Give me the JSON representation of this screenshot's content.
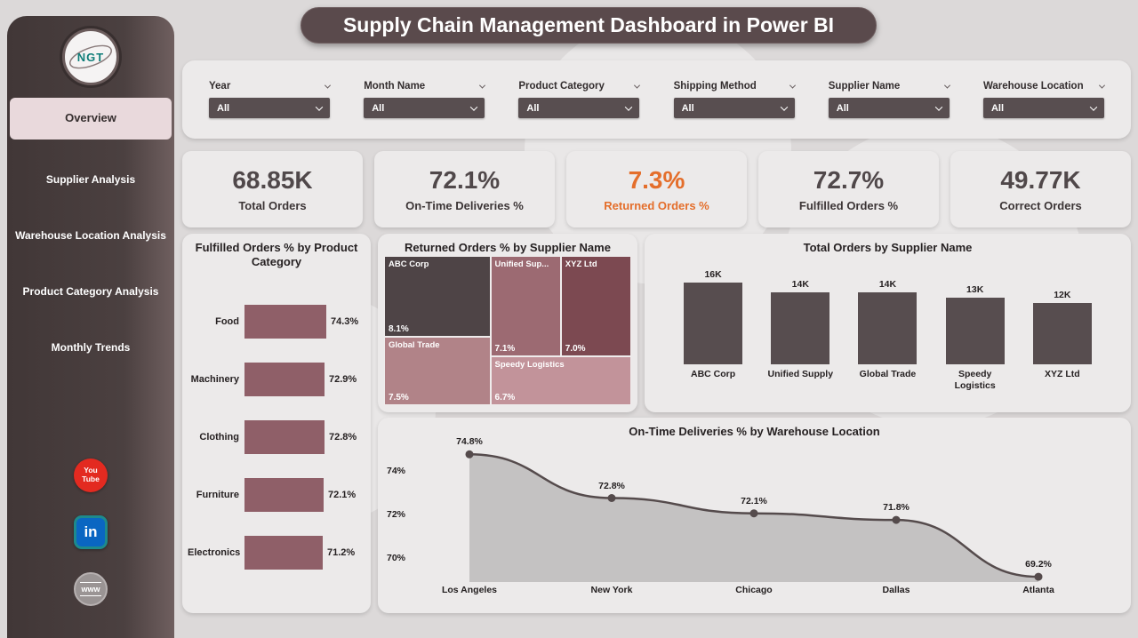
{
  "title": "Supply Chain Management Dashboard in Power BI",
  "colors": {
    "page_bg": "#dcd9d9",
    "card_bg": "#eceaea",
    "sidebar_gradient_start": "#413737",
    "sidebar_gradient_end": "#6f5f5f",
    "active_nav_bg": "#e9d9dc",
    "header_bg": "#5a4a4c",
    "dropdown_bg": "#584e50",
    "kpi_text": "#50484a",
    "kpi_highlight": "#e46e2b",
    "hbar_color": "#8f5f68",
    "column_color": "#574d4f",
    "line_color": "#554b4c",
    "area_fill": "#c4c2c2",
    "logo_text_color": "#0f7d78",
    "youtube_red": "#e32a20",
    "linkedin_blue": "#0a66c2",
    "globe_gray": "#9a9494"
  },
  "sidebar": {
    "logo_text": "NGT",
    "items": [
      {
        "label": "Overview",
        "active": true
      },
      {
        "label": "Supplier Analysis",
        "active": false
      },
      {
        "label": "Warehouse Location Analysis",
        "active": false
      },
      {
        "label": "Product Category Analysis",
        "active": false
      },
      {
        "label": "Monthly Trends",
        "active": false
      }
    ],
    "social": [
      {
        "name": "youtube",
        "text": "You Tube"
      },
      {
        "name": "linkedin",
        "text": "in"
      },
      {
        "name": "website",
        "text": "www"
      }
    ]
  },
  "filters": [
    {
      "label": "Year",
      "value": "All"
    },
    {
      "label": "Month Name",
      "value": "All"
    },
    {
      "label": "Product Category",
      "value": "All"
    },
    {
      "label": "Shipping Method",
      "value": "All"
    },
    {
      "label": "Supplier Name",
      "value": "All"
    },
    {
      "label": "Warehouse Location",
      "value": "All"
    }
  ],
  "kpis": [
    {
      "value": "68.85K",
      "label": "Total Orders",
      "highlight": false
    },
    {
      "value": "72.1%",
      "label": "On-Time Deliveries %",
      "highlight": false
    },
    {
      "value": "7.3%",
      "label": "Returned Orders %",
      "highlight": true
    },
    {
      "value": "72.7%",
      "label": "Fulfilled Orders %",
      "highlight": false
    },
    {
      "value": "49.77K",
      "label": "Correct Orders",
      "highlight": false
    }
  ],
  "chart_data": [
    {
      "type": "bar",
      "orientation": "horizontal",
      "title": "Fulfilled Orders % by Product Category",
      "categories": [
        "Food",
        "Machinery",
        "Clothing",
        "Furniture",
        "Electronics"
      ],
      "values": [
        74.3,
        72.9,
        72.8,
        72.1,
        71.2
      ],
      "labels": [
        "74.3%",
        "72.9%",
        "72.8%",
        "72.1%",
        "71.2%"
      ],
      "xlim": [
        0,
        80
      ]
    },
    {
      "type": "treemap",
      "title": "Returned Orders % by Supplier Name",
      "items": [
        {
          "name": "ABC Corp",
          "value": 8.1,
          "label": "8.1%",
          "color": "#4e4446"
        },
        {
          "name": "Global Trade",
          "value": 7.5,
          "label": "7.5%",
          "color": "#b18388"
        },
        {
          "name": "Unified Sup...",
          "value": 7.1,
          "label": "7.1%",
          "color": "#9c6a72"
        },
        {
          "name": "XYZ Ltd",
          "value": 7.0,
          "label": "7.0%",
          "color": "#7c4951"
        },
        {
          "name": "Speedy Logistics",
          "value": 6.7,
          "label": "6.7%",
          "color": "#c2939a"
        }
      ]
    },
    {
      "type": "bar",
      "orientation": "vertical",
      "title": "Total Orders by Supplier Name",
      "categories": [
        "ABC Corp",
        "Unified Supply",
        "Global Trade",
        "Speedy Logistics",
        "XYZ Ltd"
      ],
      "values": [
        16,
        14,
        14,
        13,
        12
      ],
      "labels": [
        "16K",
        "14K",
        "14K",
        "13K",
        "12K"
      ],
      "unit": "K"
    },
    {
      "type": "area",
      "title": "On-Time Deliveries % by Warehouse Location",
      "categories": [
        "Los Angeles",
        "New York",
        "Chicago",
        "Dallas",
        "Atlanta"
      ],
      "values": [
        74.8,
        72.8,
        72.1,
        71.8,
        69.2
      ],
      "labels": [
        "74.8%",
        "72.8%",
        "72.1%",
        "71.8%",
        "69.2%"
      ],
      "y_ticks": [
        "74%",
        "72%",
        "70%"
      ],
      "ylim": [
        68.5,
        76
      ]
    }
  ]
}
